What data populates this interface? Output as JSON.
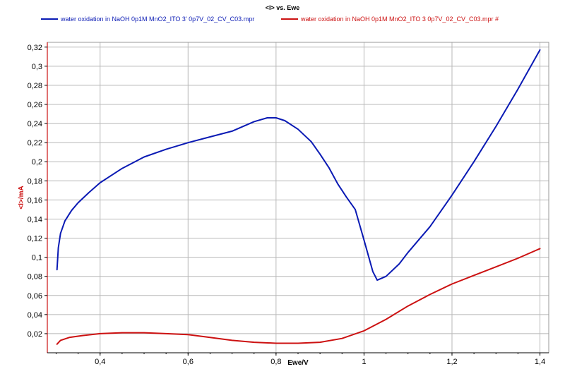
{
  "chart_data": {
    "type": "line",
    "title": "<I> vs. Ewe",
    "xlabel": "Ewe/V",
    "ylabel": "<I>/mA",
    "xlim": [
      0.28,
      1.42
    ],
    "ylim": [
      0.0,
      0.325
    ],
    "grid": true,
    "legend_position": "top",
    "x_ticks": [
      {
        "value": 0.4,
        "label": "0,4"
      },
      {
        "value": 0.6,
        "label": "0,6"
      },
      {
        "value": 0.8,
        "label": "0,8"
      },
      {
        "value": 1.0,
        "label": "1"
      },
      {
        "value": 1.2,
        "label": "1,2"
      },
      {
        "value": 1.4,
        "label": "1,4"
      }
    ],
    "y_ticks": [
      {
        "value": 0.02,
        "label": "0,02"
      },
      {
        "value": 0.04,
        "label": "0,04"
      },
      {
        "value": 0.06,
        "label": "0,06"
      },
      {
        "value": 0.08,
        "label": "0,08"
      },
      {
        "value": 0.1,
        "label": "0,1"
      },
      {
        "value": 0.12,
        "label": "0,12"
      },
      {
        "value": 0.14,
        "label": "0,14"
      },
      {
        "value": 0.16,
        "label": "0,16"
      },
      {
        "value": 0.18,
        "label": "0,18"
      },
      {
        "value": 0.2,
        "label": "0,2"
      },
      {
        "value": 0.22,
        "label": "0,22"
      },
      {
        "value": 0.24,
        "label": "0,24"
      },
      {
        "value": 0.26,
        "label": "0,26"
      },
      {
        "value": 0.28,
        "label": "0,28"
      },
      {
        "value": 0.3,
        "label": "0,3"
      },
      {
        "value": 0.32,
        "label": "0,32"
      }
    ],
    "series": [
      {
        "name": "water oxidation in NaOH 0p1M MnO2_ITO 3' 0p7V_02_CV_C03.mpr",
        "color": "#0a1ab4",
        "x": [
          0.302,
          0.305,
          0.31,
          0.32,
          0.335,
          0.35,
          0.375,
          0.4,
          0.45,
          0.5,
          0.55,
          0.6,
          0.65,
          0.7,
          0.75,
          0.78,
          0.8,
          0.82,
          0.85,
          0.88,
          0.9,
          0.92,
          0.94,
          0.96,
          0.98,
          1.0,
          1.02,
          1.03,
          1.05,
          1.08,
          1.1,
          1.15,
          1.2,
          1.25,
          1.3,
          1.35,
          1.4
        ],
        "y": [
          0.087,
          0.11,
          0.125,
          0.138,
          0.149,
          0.157,
          0.168,
          0.178,
          0.193,
          0.205,
          0.213,
          0.22,
          0.226,
          0.232,
          0.242,
          0.246,
          0.246,
          0.243,
          0.234,
          0.221,
          0.208,
          0.194,
          0.177,
          0.163,
          0.15,
          0.118,
          0.085,
          0.076,
          0.08,
          0.093,
          0.105,
          0.132,
          0.165,
          0.2,
          0.237,
          0.276,
          0.317
        ]
      },
      {
        "name": "water oxidation in NaOH 0p1M MnO2_ITO 3 0p7V_02_CV_C03.mpr #",
        "color": "#cc1111",
        "x": [
          0.302,
          0.31,
          0.33,
          0.36,
          0.4,
          0.45,
          0.5,
          0.55,
          0.6,
          0.65,
          0.7,
          0.75,
          0.8,
          0.85,
          0.9,
          0.95,
          1.0,
          1.05,
          1.1,
          1.15,
          1.2,
          1.25,
          1.3,
          1.35,
          1.4
        ],
        "y": [
          0.009,
          0.013,
          0.016,
          0.018,
          0.02,
          0.021,
          0.021,
          0.02,
          0.019,
          0.016,
          0.013,
          0.011,
          0.01,
          0.01,
          0.011,
          0.015,
          0.023,
          0.035,
          0.049,
          0.061,
          0.072,
          0.081,
          0.09,
          0.099,
          0.109
        ]
      }
    ]
  }
}
